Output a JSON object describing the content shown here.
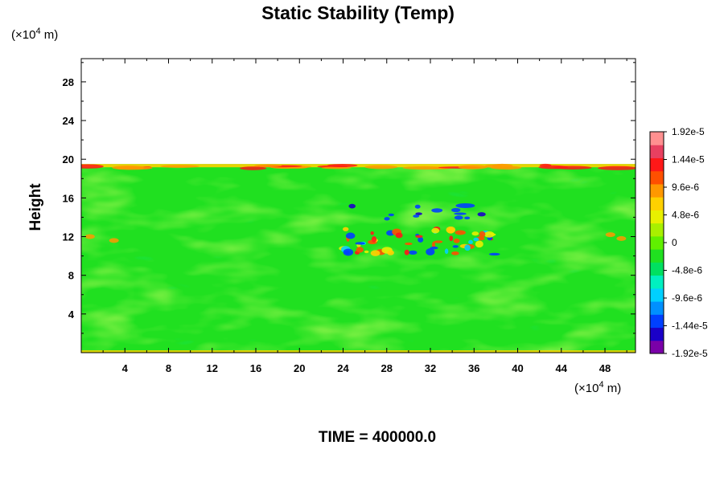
{
  "chart_data": {
    "type": "heatmap",
    "title": "Static Stability (Temp)",
    "xlabel": "",
    "ylabel": "Height",
    "x_unit": {
      "prefix": "(×10",
      "exp": "4",
      "suffix": " m)"
    },
    "y_unit": {
      "prefix": "(×10",
      "exp": "4",
      "suffix": " m)"
    },
    "xlim": [
      0,
      50.8
    ],
    "ylim": [
      0,
      30.4
    ],
    "x_ticks": [
      4,
      8,
      12,
      16,
      20,
      24,
      28,
      32,
      36,
      40,
      44,
      48
    ],
    "x_tick_labels": [
      "4",
      "8",
      "12",
      "16",
      "20",
      "24",
      "28",
      "32",
      "36",
      "40",
      "44",
      "48"
    ],
    "y_ticks": [
      4,
      8,
      12,
      16,
      20,
      24,
      28
    ],
    "y_tick_labels": [
      "4",
      "8",
      "12",
      "16",
      "20",
      "24",
      "28"
    ],
    "data_top_height": 19.5,
    "colorbar": {
      "min": -1.92e-05,
      "max": 1.92e-05,
      "tick_values": [
        1.92e-05,
        1.44e-05,
        9.6e-06,
        4.8e-06,
        0,
        -4.8e-06,
        -9.6e-06,
        -1.44e-05,
        -1.92e-05
      ],
      "tick_labels": [
        "1.92e-5",
        "1.44e-5",
        "9.6e-6",
        "4.8e-6",
        "0",
        "-4.8e-6",
        "-9.6e-6",
        "-1.44e-5",
        "-1.92e-5"
      ],
      "colors": [
        "#7a00a8",
        "#1a00c8",
        "#0040ff",
        "#0090ff",
        "#00d0ff",
        "#00f0c0",
        "#00e060",
        "#20e020",
        "#60f000",
        "#a8f000",
        "#e8f000",
        "#ffd000",
        "#ff9800",
        "#ff5000",
        "#ff1818",
        "#e84060",
        "#ff9090"
      ]
    },
    "features": [
      {
        "name": "tropopause-band",
        "x_range": [
          0,
          50.8
        ],
        "height": 19.3,
        "value": 1.6e-05
      },
      {
        "name": "jet-level-instabilities",
        "x_range": [
          24,
          38
        ],
        "height": 11.5,
        "value": 1.5e-05
      },
      {
        "name": "negative-cells",
        "x_range": [
          24,
          37
        ],
        "height": 14.5,
        "value": -1.5e-05
      }
    ]
  },
  "footer": {
    "time_text": "TIME = 400000.0"
  }
}
